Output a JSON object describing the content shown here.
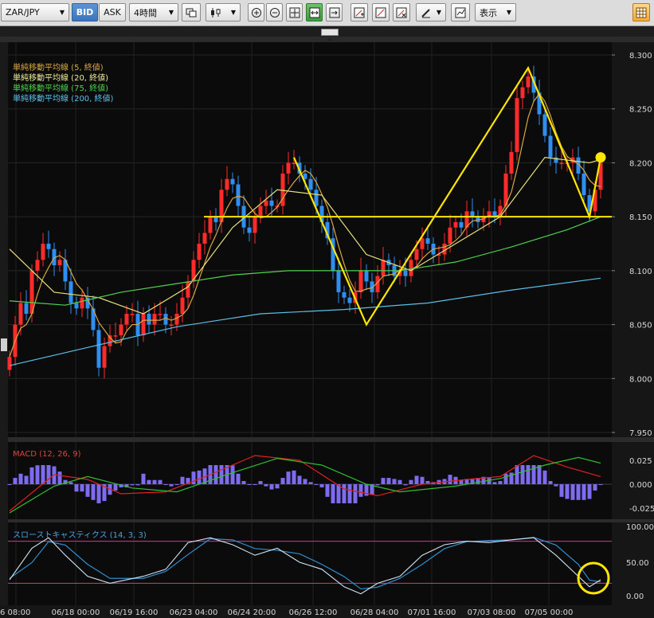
{
  "toolbar": {
    "symbol": "ZAR/JPY",
    "bid": "BID",
    "ask": "ASK",
    "timeframe": "4時間",
    "display_menu": "表示"
  },
  "legend": {
    "sma5": "単純移動平均線 (5, 終値)",
    "sma20": "単純移動平均線 (20, 終値)",
    "sma75": "単純移動平均線 (75, 終値)",
    "sma200": "単純移動平均線 (200, 終値)"
  },
  "macd_label": "MACD (12, 26, 9)",
  "stoch_label": "スローストキャスティクス (14, 3, 3)",
  "colors": {
    "sma5": "#d9a642",
    "sma20": "#e6e07a",
    "sma75": "#4fd24f",
    "sma200": "#5bc0e8",
    "candle_up": "#ff2a2a",
    "candle_down": "#2f8ff0",
    "annotation": "#ffe600"
  },
  "chart_data": {
    "type": "candlestick",
    "price_axis": {
      "min": 7.95,
      "max": 8.3,
      "ticks": [
        "8.300",
        "8.250",
        "8.200",
        "8.150",
        "8.100",
        "8.050",
        "8.000",
        "7.950"
      ]
    },
    "macd_axis": {
      "ticks": [
        "0.025",
        "0.000",
        "-0.025"
      ]
    },
    "stoch_axis": {
      "ticks": [
        "100.00",
        "50.00",
        "0.00"
      ]
    },
    "x_labels": [
      "06/18 00:00",
      "06/19 16:00",
      "06/23 04:00",
      "06/24 20:00",
      "06/26 12:00",
      "06/28 04:00",
      "07/01 16:00",
      "07/03 08:00",
      "07/05 00:00"
    ],
    "x_label_partial": "6 08:00",
    "last_price": 8.205,
    "support_level": 8.15,
    "zigzag": [
      {
        "bar": 51,
        "price": 8.205
      },
      {
        "bar": 64,
        "price": 8.05
      },
      {
        "bar": 93,
        "price": 8.288
      },
      {
        "bar": 104,
        "price": 8.15
      },
      {
        "bar": 106,
        "price": 8.205
      }
    ],
    "closes": [
      8.02,
      8.05,
      8.07,
      8.06,
      8.1,
      8.11,
      8.125,
      8.12,
      8.105,
      8.11,
      8.09,
      8.07,
      8.065,
      8.075,
      8.065,
      8.045,
      8.01,
      8.03,
      8.04,
      8.04,
      8.05,
      8.06,
      8.06,
      8.04,
      8.06,
      8.05,
      8.06,
      8.06,
      8.05,
      8.05,
      8.06,
      8.075,
      8.09,
      8.11,
      8.125,
      8.135,
      8.15,
      8.145,
      8.175,
      8.185,
      8.18,
      8.16,
      8.14,
      8.135,
      8.15,
      8.16,
      8.165,
      8.16,
      8.16,
      8.19,
      8.2,
      8.2,
      8.19,
      8.185,
      8.175,
      8.16,
      8.145,
      8.13,
      8.1,
      8.08,
      8.075,
      8.07,
      8.08,
      8.1,
      8.09,
      8.08,
      8.095,
      8.11,
      8.105,
      8.095,
      8.1,
      8.095,
      8.11,
      8.12,
      8.13,
      8.125,
      8.115,
      8.115,
      8.125,
      8.14,
      8.145,
      8.14,
      8.155,
      8.15,
      8.145,
      8.15,
      8.155,
      8.15,
      8.16,
      8.19,
      8.21,
      8.26,
      8.27,
      8.28,
      8.265,
      8.245,
      8.225,
      8.205,
      8.2,
      8.2,
      8.2,
      8.205,
      8.19,
      8.17,
      8.155,
      8.175,
      8.2
    ],
    "sma_points": {
      "sma20": [
        [
          0,
          8.12
        ],
        [
          8,
          8.08
        ],
        [
          16,
          8.075
        ],
        [
          24,
          8.06
        ],
        [
          32,
          8.085
        ],
        [
          40,
          8.14
        ],
        [
          48,
          8.175
        ],
        [
          56,
          8.17
        ],
        [
          64,
          8.115
        ],
        [
          72,
          8.1
        ],
        [
          80,
          8.125
        ],
        [
          88,
          8.15
        ],
        [
          96,
          8.205
        ],
        [
          104,
          8.2
        ],
        [
          106,
          8.203
        ]
      ],
      "sma75": [
        [
          0,
          8.072
        ],
        [
          10,
          8.068
        ],
        [
          20,
          8.08
        ],
        [
          30,
          8.088
        ],
        [
          40,
          8.096
        ],
        [
          50,
          8.1
        ],
        [
          60,
          8.1
        ],
        [
          70,
          8.1
        ],
        [
          80,
          8.108
        ],
        [
          90,
          8.122
        ],
        [
          100,
          8.138
        ],
        [
          106,
          8.15
        ]
      ],
      "sma200": [
        [
          0,
          8.012
        ],
        [
          15,
          8.03
        ],
        [
          30,
          8.048
        ],
        [
          45,
          8.06
        ],
        [
          60,
          8.064
        ],
        [
          75,
          8.07
        ],
        [
          90,
          8.082
        ],
        [
          106,
          8.093
        ]
      ]
    }
  }
}
